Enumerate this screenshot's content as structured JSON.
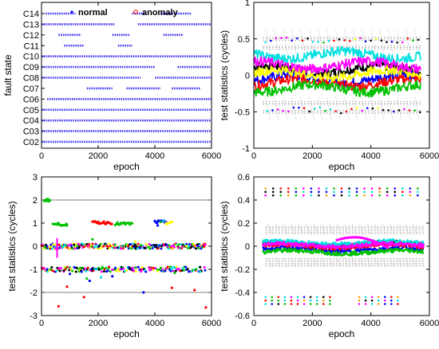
{
  "chart_data": [
    {
      "type": "scatter",
      "xlabel": "epoch",
      "ylabel": "fault state",
      "xlim": [
        0,
        6000
      ],
      "xticks": [
        "0",
        "2000",
        "4000",
        "6000"
      ],
      "categories": [
        "C02",
        "C03",
        "C04",
        "C05",
        "C06",
        "C07",
        "C08",
        "C09",
        "C10",
        "C11",
        "C12",
        "C13",
        "C14"
      ],
      "legend": [
        "normal",
        "anomaly"
      ],
      "legend_position": "top",
      "series": [
        {
          "name": "normal",
          "color": "#0000ff",
          "segments": [
            {
              "cat": "C14",
              "x": [
                [
                  150,
                  1200
                ],
                [
                  3200,
                  3700
                ],
                [
                  4200,
                  5300
                ]
              ]
            },
            {
              "cat": "C13",
              "x": [
                [
                  0,
                  2600
                ],
                [
                  3400,
                  6000
                ]
              ]
            },
            {
              "cat": "C12",
              "x": [
                [
                  600,
                  1400
                ],
                [
                  2500,
                  3100
                ],
                [
                  4300,
                  5000
                ]
              ]
            },
            {
              "cat": "C11",
              "x": [
                [
                  800,
                  1500
                ],
                [
                  2700,
                  3200
                ]
              ]
            },
            {
              "cat": "C10",
              "x": [
                [
                  0,
                  6000
                ]
              ]
            },
            {
              "cat": "C09",
              "x": [
                [
                  0,
                  4000
                ],
                [
                  4800,
                  6000
                ]
              ]
            },
            {
              "cat": "C08",
              "x": [
                [
                  0,
                  3500
                ],
                [
                  4000,
                  6000
                ]
              ]
            },
            {
              "cat": "C07",
              "x": [
                [
                  1600,
                  2500
                ],
                [
                  3000,
                  4200
                ],
                [
                  4600,
                  5600
                ]
              ]
            },
            {
              "cat": "C06",
              "x": [
                [
                  200,
                  6000
                ]
              ]
            },
            {
              "cat": "C05",
              "x": [
                [
                  0,
                  6000
                ]
              ]
            },
            {
              "cat": "C04",
              "x": [
                [
                  0,
                  6000
                ]
              ]
            },
            {
              "cat": "C03",
              "x": [
                [
                  0,
                  6000
                ]
              ]
            },
            {
              "cat": "C02",
              "x": [
                [
                  0,
                  6000
                ]
              ]
            }
          ]
        },
        {
          "name": "anomaly",
          "color": "#ff0000",
          "marker": "circle",
          "values": []
        }
      ]
    },
    {
      "type": "line",
      "xlabel": "epoch",
      "ylabel": "test statistics (cycles)",
      "xlim": [
        0,
        6000
      ],
      "ylim": [
        -1,
        1
      ],
      "xticks": [
        "0",
        "2000",
        "4000",
        "6000"
      ],
      "yticks": [
        "-1",
        "-0.5",
        "0",
        "0.5",
        "1"
      ],
      "grid": false,
      "threshold_lines": [
        0.5,
        0.38,
        -0.38,
        -0.5
      ],
      "series": [
        {
          "color": "#000000",
          "base": 0.08
        },
        {
          "color": "#0000ff",
          "base": -0.05
        },
        {
          "color": "#ff0000",
          "base": -0.1
        },
        {
          "color": "#00c000",
          "base": -0.18
        },
        {
          "color": "#00e0e0",
          "base": 0.28
        },
        {
          "color": "#ffff00",
          "base": 0.02
        },
        {
          "color": "#ff00ff",
          "base": 0.14
        }
      ]
    },
    {
      "type": "scatter",
      "xlabel": "epoch",
      "ylabel": "test statistics (cycles)",
      "xlim": [
        0,
        6000
      ],
      "ylim": [
        -3,
        3
      ],
      "xticks": [
        "0",
        "2000",
        "4000",
        "6000"
      ],
      "yticks": [
        "-3",
        "-2",
        "-1",
        "0",
        "1",
        "2",
        "3"
      ],
      "threshold_lines": [
        2,
        -2
      ],
      "series": [
        {
          "color": "#00c000",
          "points": [
            [
              150,
              2
            ],
            [
              500,
              0.95
            ],
            [
              900,
              0.9
            ],
            [
              2700,
              0.95
            ],
            [
              3100,
              0.98
            ],
            [
              4200,
              1.05
            ],
            [
              1600,
              -1.4
            ],
            [
              1800,
              0.3
            ],
            [
              4700,
              -1.15
            ]
          ]
        },
        {
          "color": "#ff0000",
          "points": [
            [
              2000,
              1.05
            ],
            [
              2300,
              1
            ],
            [
              600,
              -2.6
            ],
            [
              900,
              -1.75
            ],
            [
              1500,
              -2.2
            ],
            [
              4600,
              -1.8
            ],
            [
              5400,
              -1.9
            ],
            [
              5800,
              -2.65
            ]
          ]
        },
        {
          "color": "#0000ff",
          "points": [
            [
              200,
              -1
            ],
            [
              1000,
              -1.2
            ],
            [
              1700,
              -1.5
            ],
            [
              2500,
              -1.3
            ],
            [
              3600,
              -2
            ],
            [
              4100,
              0.9
            ],
            [
              5200,
              -1.1
            ]
          ]
        },
        {
          "color": "#00e0e0",
          "points": [
            [
              2100,
              -1.35
            ],
            [
              4300,
              1.1
            ],
            [
              5600,
              -1.1
            ]
          ]
        },
        {
          "color": "#ff00ff",
          "points": [
            [
              500,
              -0.1
            ],
            [
              2800,
              -0.1
            ]
          ]
        },
        {
          "color": "#ffff00",
          "points": [
            [
              3300,
              0.2
            ],
            [
              4400,
              1
            ]
          ]
        }
      ]
    },
    {
      "type": "line",
      "xlabel": "epoch",
      "ylabel": "test statistics (cycles)",
      "xlim": [
        0,
        6000
      ],
      "ylim": [
        -0.6,
        0.6
      ],
      "xticks": [
        "0",
        "2000",
        "4000",
        "6000"
      ],
      "yticks": [
        "-0.6",
        "-0.4",
        "-0.2",
        "0",
        "0.2",
        "0.4",
        "0.6"
      ],
      "threshold_lines": [
        0.16,
        0.12,
        -0.12,
        -0.16
      ],
      "series": [
        {
          "color": "#000000",
          "base": 0.02
        },
        {
          "color": "#0000ff",
          "base": -0.03
        },
        {
          "color": "#ff0000",
          "base": 0.0
        },
        {
          "color": "#00c000",
          "base": -0.05
        },
        {
          "color": "#00e0e0",
          "base": 0.03
        },
        {
          "color": "#ff00ff",
          "base": 0.01
        }
      ],
      "upper_dots_y": [
        0.5,
        0.47,
        0.44
      ],
      "lower_dots_y": [
        -0.44,
        -0.47,
        -0.5
      ]
    }
  ]
}
